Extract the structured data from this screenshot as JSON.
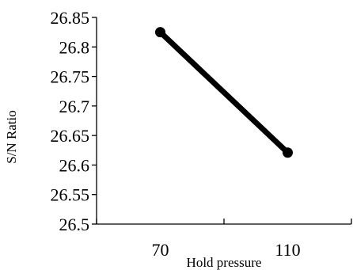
{
  "chart_data": {
    "type": "line",
    "title": "",
    "xlabel": "Hold pressure",
    "ylabel": "S/N Ratio",
    "categories": [
      "70",
      "110"
    ],
    "series": [
      {
        "values": [
          26.825,
          26.621
        ],
        "color": "#000000"
      }
    ],
    "ylim": [
      26.5,
      26.85
    ],
    "yticks": [
      "26.85",
      "26.8",
      "26.75",
      "26.7",
      "26.65",
      "26.6",
      "26.55",
      "26.5"
    ],
    "grid": false,
    "legend": "none"
  }
}
